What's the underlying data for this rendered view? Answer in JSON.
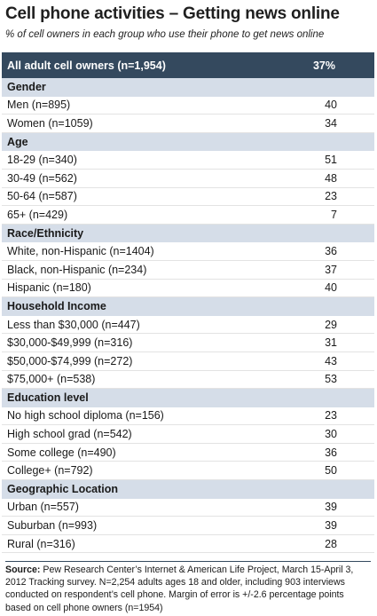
{
  "title": "Cell phone activities – Getting news online",
  "subtitle": "% of cell owners in each group who use their phone to get news online",
  "overall": {
    "label": "All adult cell owners (n=1,954)",
    "value": "37%"
  },
  "groups": [
    {
      "heading": "Gender",
      "rows": [
        {
          "label": "Men (n=895)",
          "value": "40"
        },
        {
          "label": "Women (n=1059)",
          "value": "34"
        }
      ]
    },
    {
      "heading": "Age",
      "rows": [
        {
          "label": "18-29 (n=340)",
          "value": "51"
        },
        {
          "label": "30-49 (n=562)",
          "value": "48"
        },
        {
          "label": "50-64 (n=587)",
          "value": "23"
        },
        {
          "label": "65+ (n=429)",
          "value": "7"
        }
      ]
    },
    {
      "heading": "Race/Ethnicity",
      "rows": [
        {
          "label": "White, non-Hispanic (n=1404)",
          "value": "36"
        },
        {
          "label": "Black, non-Hispanic (n=234)",
          "value": "37"
        },
        {
          "label": "Hispanic (n=180)",
          "value": "40"
        }
      ]
    },
    {
      "heading": "Household Income",
      "rows": [
        {
          "label": "Less than $30,000 (n=447)",
          "value": "29"
        },
        {
          "label": "$30,000-$49,999 (n=316)",
          "value": "31"
        },
        {
          "label": "$50,000-$74,999 (n=272)",
          "value": "43"
        },
        {
          "label": "$75,000+ (n=538)",
          "value": "53"
        }
      ]
    },
    {
      "heading": "Education level",
      "rows": [
        {
          "label": "No high school diploma (n=156)",
          "value": "23"
        },
        {
          "label": "High school grad (n=542)",
          "value": "30"
        },
        {
          "label": "Some college (n=490)",
          "value": "36"
        },
        {
          "label": "College+ (n=792)",
          "value": "50"
        }
      ]
    },
    {
      "heading": "Geographic Location",
      "rows": [
        {
          "label": "Urban (n=557)",
          "value": "39"
        },
        {
          "label": "Suburban (n=993)",
          "value": "39"
        },
        {
          "label": "Rural (n=316)",
          "value": "28"
        }
      ]
    }
  ],
  "source": {
    "label": "Source:",
    "text": "Pew Research Center’s Internet & American Life Project, March 15-April 3, 2012 Tracking survey. N=2,254 adults ages 18 and older, including 903 interviews conducted on respondent’s cell phone. Margin of error is +/-2.6 percentage points based on cell phone owners (n=1954)"
  },
  "chart_data": {
    "type": "table",
    "title": "Cell phone activities – Getting news online",
    "subtitle": "% of cell owners in each group who use their phone to get news online",
    "overall": {
      "label": "All adult cell owners (n=1,954)",
      "value": 37
    },
    "groups": [
      {
        "name": "Gender",
        "categories": [
          "Men (n=895)",
          "Women (n=1059)"
        ],
        "values": [
          40,
          34
        ]
      },
      {
        "name": "Age",
        "categories": [
          "18-29 (n=340)",
          "30-49 (n=562)",
          "50-64 (n=587)",
          "65+ (n=429)"
        ],
        "values": [
          51,
          48,
          23,
          7
        ]
      },
      {
        "name": "Race/Ethnicity",
        "categories": [
          "White, non-Hispanic (n=1404)",
          "Black, non-Hispanic (n=234)",
          "Hispanic (n=180)"
        ],
        "values": [
          36,
          37,
          40
        ]
      },
      {
        "name": "Household Income",
        "categories": [
          "Less than $30,000 (n=447)",
          "$30,000-$49,999 (n=316)",
          "$50,000-$74,999 (n=272)",
          "$75,000+ (n=538)"
        ],
        "values": [
          29,
          31,
          43,
          53
        ]
      },
      {
        "name": "Education level",
        "categories": [
          "No high school diploma (n=156)",
          "High school grad (n=542)",
          "Some college (n=490)",
          "College+ (n=792)"
        ],
        "values": [
          23,
          30,
          36,
          50
        ]
      },
      {
        "name": "Geographic Location",
        "categories": [
          "Urban (n=557)",
          "Suburban (n=993)",
          "Rural (n=316)"
        ],
        "values": [
          39,
          39,
          28
        ]
      }
    ]
  },
  "colors": {
    "header_bg": "#34495e",
    "group_bg": "#d5dde8"
  }
}
